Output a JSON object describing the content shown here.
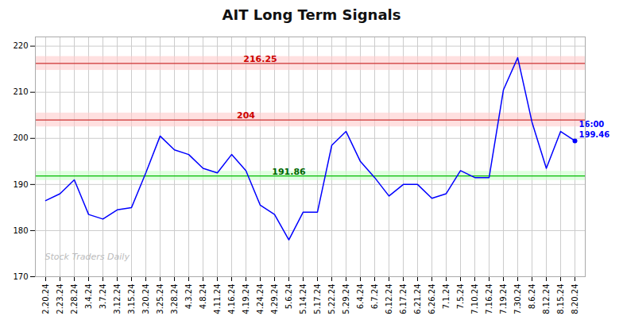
{
  "chart_data": {
    "type": "line",
    "title": "AIT Long Term Signals",
    "categories": [
      "2.20.24",
      "2.23.24",
      "2.28.24",
      "3.4.24",
      "3.7.24",
      "3.12.24",
      "3.15.24",
      "3.20.24",
      "3.25.24",
      "3.28.24",
      "4.3.24",
      "4.8.24",
      "4.11.24",
      "4.16.24",
      "4.19.24",
      "4.24.24",
      "4.29.24",
      "5.6.24",
      "5.14.24",
      "5.17.24",
      "5.22.24",
      "5.29.24",
      "6.4.24",
      "6.7.24",
      "6.12.24",
      "6.17.24",
      "6.21.24",
      "6.26.24",
      "7.1.24",
      "7.5.24",
      "7.10.24",
      "7.16.24",
      "7.19.24",
      "7.30.24",
      "8.6.24",
      "8.12.24",
      "8.15.24",
      "8.20.24"
    ],
    "values": [
      186.5,
      188.0,
      191.0,
      183.5,
      182.5,
      184.5,
      185.0,
      192.5,
      200.5,
      197.5,
      196.5,
      193.5,
      192.5,
      196.5,
      193.0,
      185.5,
      183.5,
      178.0,
      184.0,
      184.0,
      198.5,
      201.5,
      195.0,
      191.5,
      187.5,
      190.0,
      190.0,
      187.0,
      188.0,
      193.0,
      191.5,
      191.5,
      210.5,
      217.5,
      203.5,
      193.5,
      201.5,
      199.46
    ],
    "color": "blue",
    "ylim": [
      170,
      222
    ],
    "yticks": [
      170,
      180,
      190,
      200,
      210,
      220
    ],
    "grid": true,
    "watermark": "Stock Traders Daily",
    "levels": [
      {
        "value": 216.25,
        "label": "216.25",
        "color": "#cc3333",
        "label_color": "#cc0000",
        "band": [
          214.75,
          217.75
        ],
        "band_color": "#ffcccc"
      },
      {
        "value": 204.0,
        "label": "204",
        "color": "#cc3333",
        "label_color": "#cc0000",
        "band": [
          202.5,
          205.5
        ],
        "band_color": "#ffcccc"
      },
      {
        "value": 191.86,
        "label": "191.86",
        "color": "#00bb00",
        "label_color": "#006600",
        "band": [
          190.86,
          192.86
        ],
        "band_color": "#ccffcc"
      }
    ],
    "last_point": {
      "category": "8.20.24",
      "value": 199.46,
      "labels": [
        "16:00",
        "199.46"
      ],
      "color": "blue"
    }
  }
}
